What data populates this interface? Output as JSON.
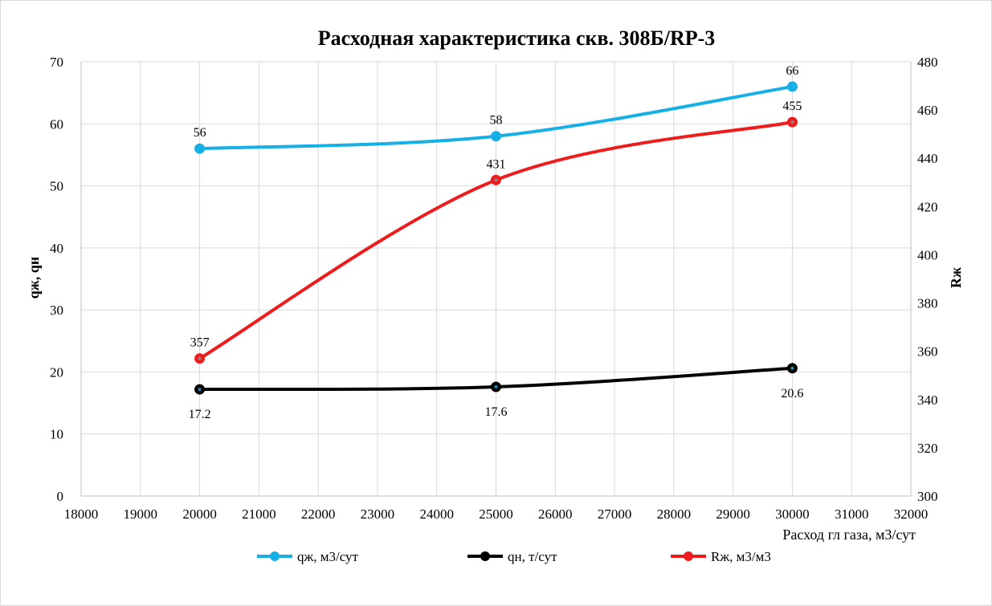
{
  "chart_data": {
    "type": "line",
    "title": "Расходная характеристика скв. 308Б/RP-3",
    "xlabel": "Расход гл газа, м3/сут",
    "ylabel": "qж, qн",
    "y2label": "Rж",
    "xlim": [
      18000,
      32000
    ],
    "xticks": [
      18000,
      19000,
      20000,
      21000,
      22000,
      23000,
      24000,
      25000,
      26000,
      27000,
      28000,
      29000,
      30000,
      31000,
      32000
    ],
    "ylim": [
      0,
      70
    ],
    "yticks": [
      0,
      10,
      20,
      30,
      40,
      50,
      60,
      70
    ],
    "y2lim": [
      300,
      480
    ],
    "y2ticks": [
      300,
      320,
      340,
      360,
      380,
      400,
      420,
      440,
      460,
      480
    ],
    "grid": true,
    "legend_position": "bottom",
    "x": [
      20000,
      25000,
      30000
    ],
    "series": [
      {
        "name": "qж, м3/сут",
        "axis": "left",
        "color": "#16b0e6",
        "values": [
          56,
          58,
          66
        ],
        "labels": [
          "56",
          "58",
          "66"
        ],
        "label_position": "above"
      },
      {
        "name": "qн, т/сут",
        "axis": "left",
        "color": "#000000",
        "values": [
          17.2,
          17.6,
          20.6
        ],
        "labels": [
          "17.2",
          "17.6",
          "20.6"
        ],
        "label_position": "below"
      },
      {
        "name": "Rж, м3/м3",
        "axis": "right",
        "color": "#ee1c1c",
        "values": [
          357,
          431,
          455
        ],
        "labels": [
          "357",
          "431",
          "455"
        ],
        "label_position": "above"
      }
    ]
  }
}
